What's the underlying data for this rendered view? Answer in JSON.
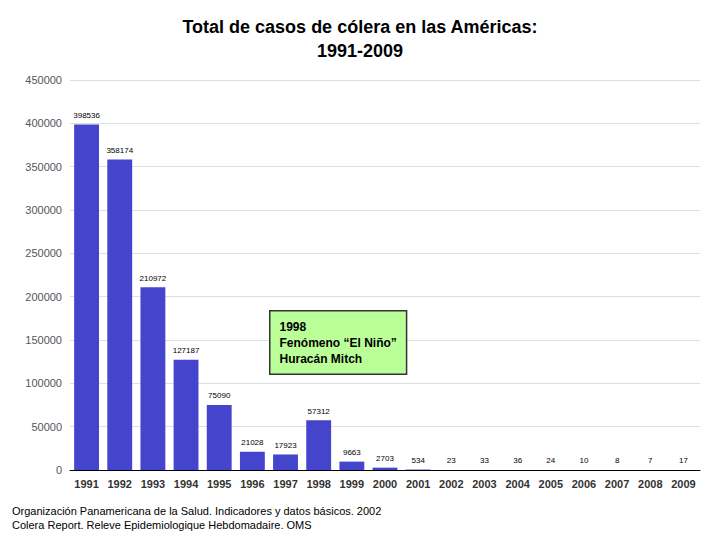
{
  "chart_data": {
    "type": "bar",
    "title": "Total de casos de cólera en las Américas:\n1991-2009",
    "categories": [
      "1991",
      "1992",
      "1993",
      "1994",
      "1995",
      "1996",
      "1997",
      "1998",
      "1999",
      "2000",
      "2001",
      "2002",
      "2003",
      "2004",
      "2005",
      "2006",
      "2007",
      "2008",
      "2009"
    ],
    "values": [
      398536,
      358174,
      210972,
      127187,
      75090,
      21028,
      17923,
      57312,
      9663,
      2703,
      534,
      23,
      33,
      36,
      24,
      10,
      8,
      7,
      17
    ],
    "color": "#4444cc",
    "ylim": [
      0,
      450000
    ],
    "yticks": [
      0,
      50000,
      100000,
      150000,
      200000,
      250000,
      300000,
      350000,
      400000,
      450000
    ],
    "grid": true,
    "data_labels": true,
    "annotations": [
      {
        "text": "1998\nFenómeno “El Niño”\nHuracán Mitch",
        "color": "#bbff99"
      }
    ],
    "footnote": "Organización Panamericana de la Salud. Indicadores y datos básicos. 2002\nColera Report. Releve Epidemiologique Hebdomadaire. OMS"
  }
}
